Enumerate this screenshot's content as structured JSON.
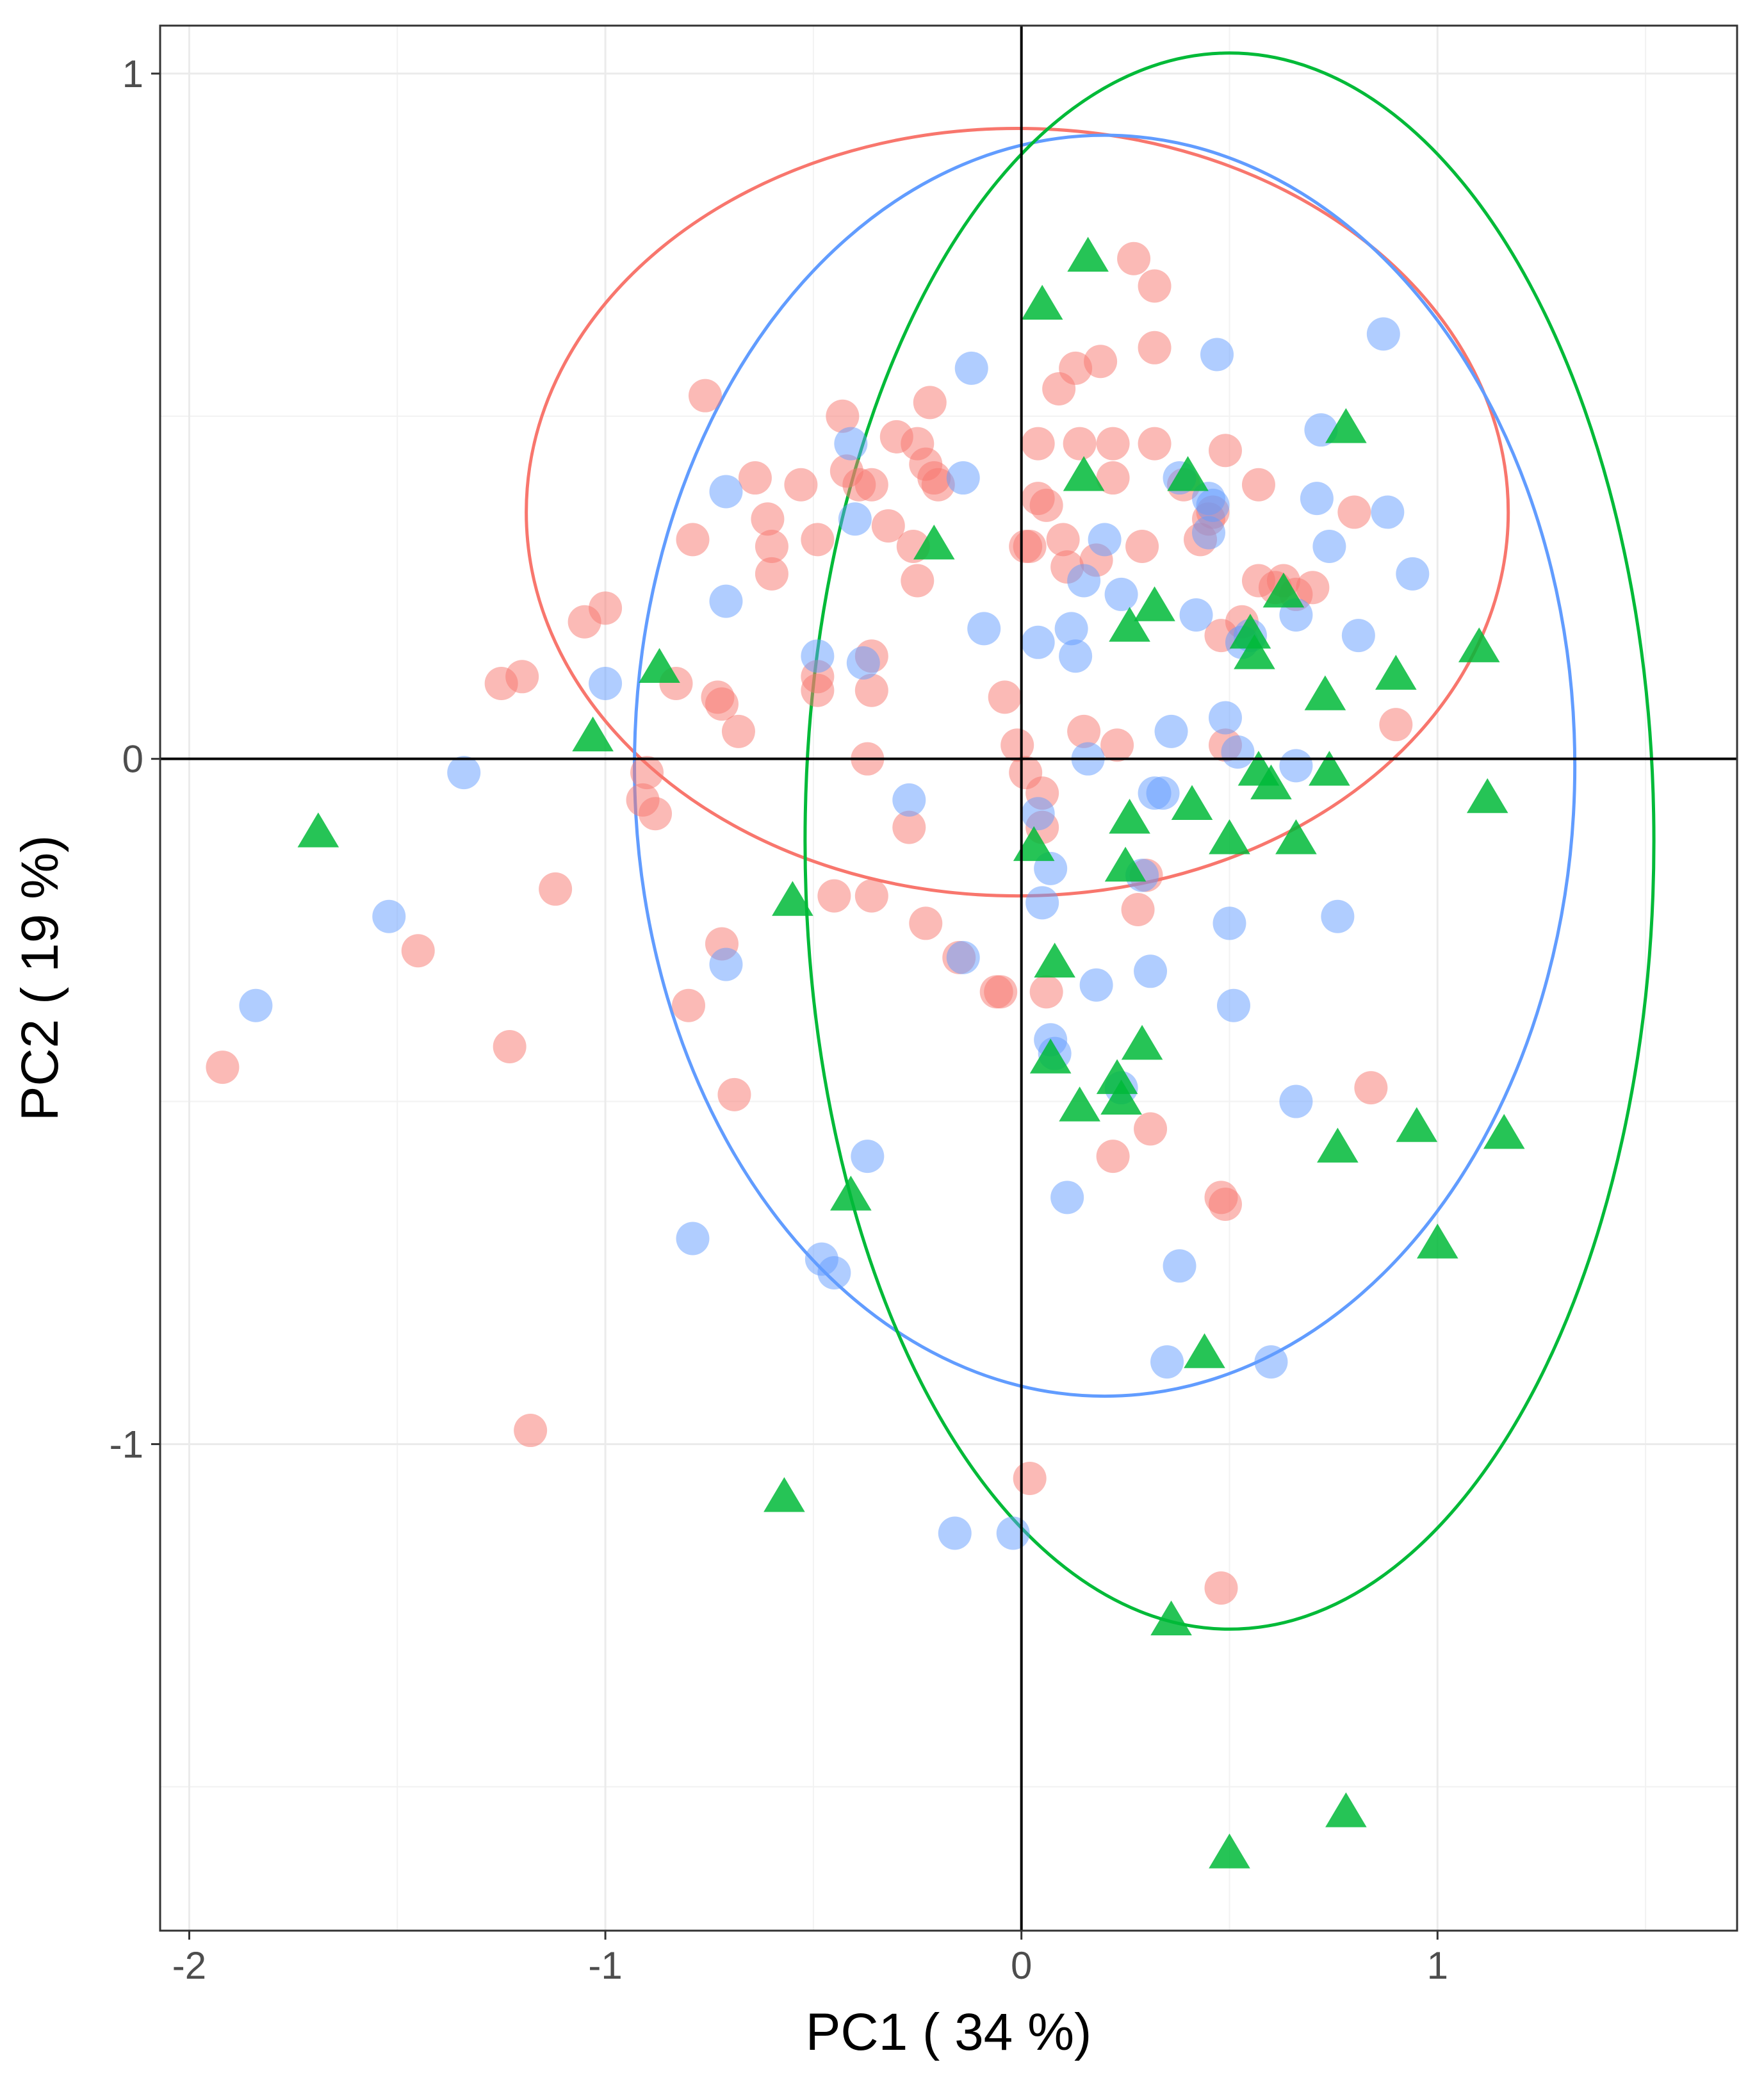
{
  "chart_data": {
    "type": "scatter",
    "title": "",
    "xlabel": "PC1 ( 34 %)",
    "ylabel": "PC2 ( 19 %)",
    "xlim": [
      -2.07,
      1.72
    ],
    "ylim": [
      -1.71,
      1.07
    ],
    "x_ticks": [
      -2,
      -1,
      0,
      1
    ],
    "x_tick_labels": [
      "-2",
      "-1",
      "0",
      "1"
    ],
    "y_ticks": [
      1,
      0,
      -1
    ],
    "y_tick_labels": [
      "1",
      "0",
      "-1"
    ],
    "grid": true,
    "minor_grid": true,
    "reference_lines": {
      "x": 0,
      "y": 0
    },
    "legend": "none",
    "series": [
      {
        "color": "#F8766D",
        "marker": "circle",
        "points": [
          [
            -1.92,
            -0.45
          ],
          [
            -1.45,
            -0.28
          ],
          [
            -1.23,
            -0.42
          ],
          [
            -1.25,
            0.11
          ],
          [
            -1.2,
            0.12
          ],
          [
            -1.18,
            -0.98
          ],
          [
            -1.12,
            -0.19
          ],
          [
            -1.05,
            0.2
          ],
          [
            -1.0,
            0.22
          ],
          [
            -0.9,
            -0.02
          ],
          [
            -0.91,
            -0.06
          ],
          [
            -0.88,
            -0.08
          ],
          [
            -0.83,
            0.11
          ],
          [
            -0.79,
            0.32
          ],
          [
            -0.76,
            0.53
          ],
          [
            -0.8,
            -0.36
          ],
          [
            -0.73,
            0.09
          ],
          [
            -0.72,
            0.08
          ],
          [
            -0.68,
            0.04
          ],
          [
            -0.69,
            -0.49
          ],
          [
            -0.72,
            -0.27
          ],
          [
            -0.64,
            0.41
          ],
          [
            -0.61,
            0.35
          ],
          [
            -0.6,
            0.31
          ],
          [
            -0.6,
            0.27
          ],
          [
            -0.53,
            0.4
          ],
          [
            -0.49,
            0.32
          ],
          [
            -0.49,
            0.1
          ],
          [
            -0.49,
            0.12
          ],
          [
            -0.43,
            0.5
          ],
          [
            -0.42,
            0.42
          ],
          [
            -0.39,
            0.4
          ],
          [
            -0.36,
            0.4
          ],
          [
            -0.36,
            0.15
          ],
          [
            -0.36,
            0.1
          ],
          [
            -0.37,
            0.0
          ],
          [
            -0.36,
            -0.2
          ],
          [
            -0.45,
            -0.2
          ],
          [
            -0.32,
            0.34
          ],
          [
            -0.3,
            0.47
          ],
          [
            -0.27,
            -0.1
          ],
          [
            -0.25,
            0.46
          ],
          [
            -0.26,
            0.31
          ],
          [
            -0.25,
            0.26
          ],
          [
            -0.23,
            0.43
          ],
          [
            -0.21,
            0.41
          ],
          [
            -0.2,
            0.4
          ],
          [
            -0.22,
            0.52
          ],
          [
            -0.23,
            -0.24
          ],
          [
            -0.15,
            -0.29
          ],
          [
            -0.06,
            -0.34
          ],
          [
            -0.05,
            -0.34
          ],
          [
            -0.04,
            0.09
          ],
          [
            -0.01,
            0.02
          ],
          [
            0.01,
            0.31
          ],
          [
            0.02,
            0.31
          ],
          [
            0.04,
            0.46
          ],
          [
            0.04,
            0.38
          ],
          [
            0.06,
            0.37
          ],
          [
            0.05,
            -0.05
          ],
          [
            0.05,
            -0.1
          ],
          [
            0.06,
            -0.34
          ],
          [
            0.09,
            0.54
          ],
          [
            0.1,
            0.32
          ],
          [
            0.11,
            0.28
          ],
          [
            0.13,
            0.57
          ],
          [
            0.14,
            0.46
          ],
          [
            0.15,
            0.04
          ],
          [
            0.19,
            0.58
          ],
          [
            0.18,
            0.29
          ],
          [
            0.22,
            0.41
          ],
          [
            0.22,
            0.46
          ],
          [
            0.23,
            0.02
          ],
          [
            0.22,
            -0.58
          ],
          [
            0.27,
            0.73
          ],
          [
            0.28,
            -0.22
          ],
          [
            0.29,
            0.31
          ],
          [
            0.3,
            -0.17
          ],
          [
            0.32,
            0.69
          ],
          [
            0.32,
            0.6
          ],
          [
            0.32,
            0.46
          ],
          [
            0.31,
            -0.54
          ],
          [
            0.39,
            0.4
          ],
          [
            0.43,
            0.32
          ],
          [
            0.45,
            0.35
          ],
          [
            0.49,
            0.45
          ],
          [
            0.48,
            0.18
          ],
          [
            0.49,
            0.02
          ],
          [
            0.48,
            -0.64
          ],
          [
            0.49,
            -0.65
          ],
          [
            0.48,
            -1.21
          ],
          [
            0.57,
            0.4
          ],
          [
            0.57,
            0.26
          ],
          [
            0.61,
            0.25
          ],
          [
            0.63,
            0.26
          ],
          [
            0.66,
            0.24
          ],
          [
            0.7,
            0.25
          ],
          [
            0.8,
            0.36
          ],
          [
            0.84,
            -0.48
          ],
          [
            0.9,
            0.05
          ],
          [
            0.46,
            0.36
          ],
          [
            0.53,
            0.2
          ],
          [
            0.01,
            -0.02
          ],
          [
            0.02,
            -1.05
          ]
        ]
      },
      {
        "color": "#619CFF",
        "marker": "circle",
        "points": [
          [
            -1.84,
            -0.36
          ],
          [
            -1.52,
            -0.23
          ],
          [
            -1.34,
            -0.02
          ],
          [
            -1.0,
            0.11
          ],
          [
            -0.79,
            -0.7
          ],
          [
            -0.71,
            0.39
          ],
          [
            -0.71,
            0.23
          ],
          [
            -0.71,
            -0.3
          ],
          [
            -0.48,
            -0.73
          ],
          [
            -0.49,
            0.15
          ],
          [
            -0.45,
            -0.75
          ],
          [
            -0.41,
            0.46
          ],
          [
            -0.4,
            0.35
          ],
          [
            -0.38,
            0.14
          ],
          [
            -0.37,
            -0.58
          ],
          [
            -0.27,
            -0.06
          ],
          [
            -0.14,
            -0.29
          ],
          [
            -0.14,
            0.41
          ],
          [
            -0.12,
            0.57
          ],
          [
            -0.09,
            0.19
          ],
          [
            -0.16,
            -1.13
          ],
          [
            -0.02,
            -1.13
          ],
          [
            0.04,
            -0.08
          ],
          [
            0.04,
            0.17
          ],
          [
            0.05,
            -0.21
          ],
          [
            0.07,
            -0.16
          ],
          [
            0.07,
            -0.41
          ],
          [
            0.08,
            -0.43
          ],
          [
            0.11,
            -0.64
          ],
          [
            0.12,
            0.19
          ],
          [
            0.13,
            0.15
          ],
          [
            0.15,
            0.26
          ],
          [
            0.16,
            0.0
          ],
          [
            0.18,
            -0.33
          ],
          [
            0.2,
            0.32
          ],
          [
            0.24,
            -0.48
          ],
          [
            0.24,
            0.24
          ],
          [
            0.29,
            -0.17
          ],
          [
            0.31,
            -0.31
          ],
          [
            0.32,
            -0.05
          ],
          [
            0.34,
            -0.05
          ],
          [
            0.35,
            -0.88
          ],
          [
            0.36,
            0.04
          ],
          [
            0.38,
            0.41
          ],
          [
            0.38,
            -0.74
          ],
          [
            0.42,
            0.21
          ],
          [
            0.45,
            0.33
          ],
          [
            0.45,
            0.38
          ],
          [
            0.46,
            0.37
          ],
          [
            0.47,
            0.59
          ],
          [
            0.49,
            0.06
          ],
          [
            0.5,
            -0.24
          ],
          [
            0.51,
            -0.36
          ],
          [
            0.52,
            0.01
          ],
          [
            0.53,
            0.17
          ],
          [
            0.55,
            0.18
          ],
          [
            0.6,
            -0.88
          ],
          [
            0.66,
            0.21
          ],
          [
            0.66,
            -0.01
          ],
          [
            0.66,
            -0.5
          ],
          [
            0.71,
            0.38
          ],
          [
            0.72,
            0.48
          ],
          [
            0.74,
            0.31
          ],
          [
            0.76,
            -0.23
          ],
          [
            0.81,
            0.18
          ],
          [
            0.87,
            0.62
          ],
          [
            0.88,
            0.36
          ],
          [
            0.94,
            0.27
          ]
        ]
      },
      {
        "color": "#00BA38",
        "marker": "triangle",
        "points": [
          [
            -1.69,
            -0.11
          ],
          [
            -1.03,
            0.03
          ],
          [
            -0.87,
            0.13
          ],
          [
            -0.55,
            -0.21
          ],
          [
            -0.57,
            -1.08
          ],
          [
            -0.41,
            -0.64
          ],
          [
            -0.21,
            0.31
          ],
          [
            0.05,
            0.66
          ],
          [
            0.03,
            -0.13
          ],
          [
            0.08,
            -0.3
          ],
          [
            0.07,
            -0.44
          ],
          [
            0.14,
            -0.51
          ],
          [
            0.15,
            0.41
          ],
          [
            0.16,
            0.73
          ],
          [
            0.23,
            -0.47
          ],
          [
            0.24,
            -0.5
          ],
          [
            0.25,
            -0.16
          ],
          [
            0.26,
            0.19
          ],
          [
            0.26,
            -0.09
          ],
          [
            0.29,
            -0.42
          ],
          [
            0.32,
            0.22
          ],
          [
            0.36,
            -1.26
          ],
          [
            0.4,
            0.41
          ],
          [
            0.41,
            -0.07
          ],
          [
            0.44,
            -0.87
          ],
          [
            0.5,
            -0.12
          ],
          [
            0.5,
            -1.6
          ],
          [
            0.55,
            0.18
          ],
          [
            0.56,
            0.15
          ],
          [
            0.57,
            -0.02
          ],
          [
            0.6,
            -0.04
          ],
          [
            0.63,
            0.24
          ],
          [
            0.66,
            -0.12
          ],
          [
            0.73,
            0.09
          ],
          [
            0.74,
            -0.02
          ],
          [
            0.76,
            -0.57
          ],
          [
            0.78,
            0.48
          ],
          [
            0.78,
            -1.54
          ],
          [
            0.9,
            0.12
          ],
          [
            0.95,
            -0.54
          ],
          [
            1.0,
            -0.71
          ],
          [
            1.1,
            0.16
          ],
          [
            1.12,
            -0.06
          ],
          [
            1.16,
            -0.55
          ]
        ]
      }
    ],
    "ellipses": [
      {
        "color": "#F8766D",
        "center": [
          -0.01,
          0.36
        ],
        "rx": 1.18,
        "ry": 0.56
      },
      {
        "color": "#619CFF",
        "center": [
          0.2,
          -0.01
        ],
        "rx": 1.13,
        "ry": 0.92
      },
      {
        "color": "#00BA38",
        "center": [
          0.5,
          -0.12
        ],
        "rx": 1.02,
        "ry": 1.15
      }
    ]
  }
}
